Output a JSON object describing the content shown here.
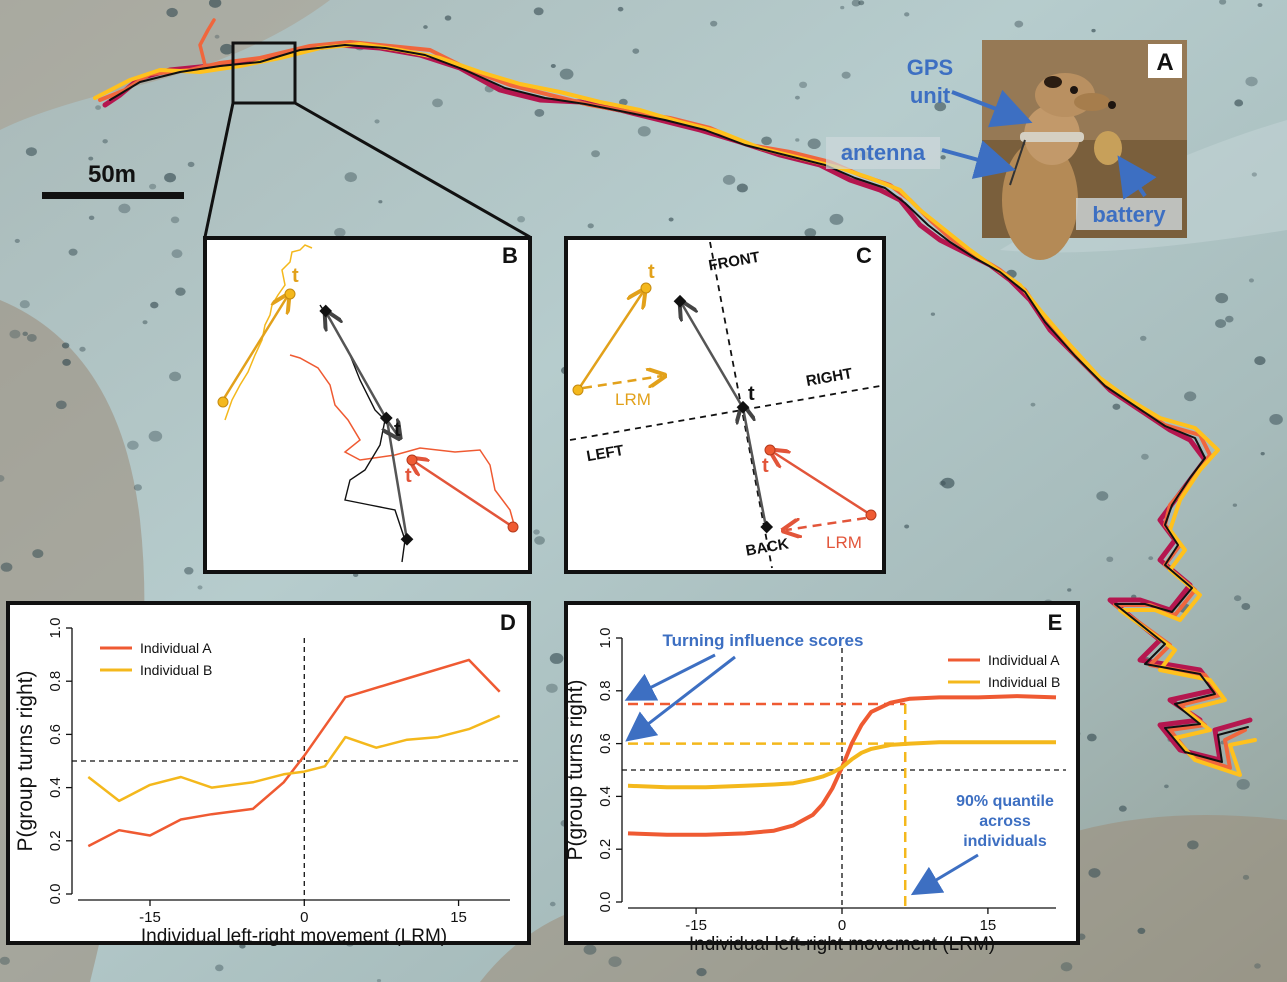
{
  "scale_bar": {
    "label": "50m"
  },
  "panels": {
    "a": {
      "label": "A",
      "annotations": [
        "GPS",
        "unit",
        "antenna",
        "battery"
      ]
    },
    "b": {
      "label": "B",
      "t_labels": [
        "t",
        "t",
        "t"
      ]
    },
    "c": {
      "label": "C",
      "directions": [
        "FRONT",
        "RIGHT",
        "LEFT",
        "BACK"
      ],
      "lrm": [
        "LRM",
        "LRM"
      ],
      "t_labels": [
        "t",
        "t",
        "t"
      ]
    },
    "d": {
      "label": "D"
    },
    "e": {
      "label": "E",
      "annotations": [
        "Turning influence scores",
        "90% quantile",
        "across",
        "individuals"
      ]
    }
  },
  "colors": {
    "individual_a": "#ef5a32",
    "individual_b": "#f4b81c",
    "group": "#111111",
    "track_dark": "#b5164f",
    "annotation_blue": "#3d6fc2"
  },
  "icons": [
    "meerkat-photo",
    "satellite-map"
  ],
  "chart_data": [
    {
      "type": "line",
      "panel": "D",
      "title": "",
      "xlabel": "Individual left-right movement (LRM)",
      "ylabel": "P(group turns right)",
      "xlim": [
        -22,
        20
      ],
      "ylim": [
        0,
        1
      ],
      "xticks": [
        -15,
        0,
        15
      ],
      "yticks": [
        "0.0",
        "0.2",
        "0.4",
        "0.6",
        "0.8",
        "1.0"
      ],
      "legend": "top-left",
      "hline": 0.5,
      "vline": 0,
      "series": [
        {
          "name": "Individual A",
          "color": "#ef5a32",
          "x": [
            -21,
            -18,
            -15,
            -12,
            -9,
            -5,
            -2,
            0,
            4,
            10,
            16,
            19
          ],
          "y": [
            0.18,
            0.24,
            0.22,
            0.28,
            0.3,
            0.32,
            0.42,
            0.52,
            0.74,
            0.81,
            0.88,
            0.76
          ]
        },
        {
          "name": "Individual B",
          "color": "#f4b81c",
          "x": [
            -21,
            -18,
            -15,
            -12,
            -9,
            -5,
            -2,
            0,
            2,
            4,
            7,
            10,
            13,
            16,
            19
          ],
          "y": [
            0.44,
            0.35,
            0.41,
            0.44,
            0.4,
            0.42,
            0.45,
            0.46,
            0.48,
            0.59,
            0.55,
            0.58,
            0.59,
            0.62,
            0.67
          ]
        }
      ]
    },
    {
      "type": "line",
      "panel": "E",
      "title": "",
      "xlabel": "Individual left-right movement (LRM)",
      "ylabel": "P(group turns right)",
      "xlim": [
        -22,
        22
      ],
      "ylim": [
        0,
        1
      ],
      "xticks": [
        -15,
        0,
        15
      ],
      "yticks": [
        "0.0",
        "0.2",
        "0.4",
        "0.6",
        "0.8",
        "1.0"
      ],
      "legend": "top-right",
      "hline": 0.5,
      "vline": 0,
      "quantile_x": 6.5,
      "influence_a": 0.75,
      "influence_b": 0.6,
      "series": [
        {
          "name": "Individual A",
          "color": "#ef5a32",
          "x": [
            -22,
            -18,
            -14,
            -10,
            -7,
            -5,
            -3,
            -2,
            -1,
            0,
            1,
            2,
            3,
            5,
            7,
            10,
            14,
            18,
            22
          ],
          "y": [
            0.26,
            0.255,
            0.255,
            0.26,
            0.27,
            0.29,
            0.33,
            0.37,
            0.43,
            0.51,
            0.6,
            0.67,
            0.72,
            0.755,
            0.77,
            0.775,
            0.775,
            0.78,
            0.775
          ]
        },
        {
          "name": "Individual B",
          "color": "#f4b81c",
          "x": [
            -22,
            -18,
            -14,
            -10,
            -7,
            -5,
            -3,
            -2,
            -1,
            0,
            1,
            2,
            3,
            5,
            7,
            10,
            14,
            18,
            22
          ],
          "y": [
            0.44,
            0.435,
            0.435,
            0.44,
            0.445,
            0.45,
            0.465,
            0.475,
            0.49,
            0.51,
            0.54,
            0.565,
            0.58,
            0.595,
            0.6,
            0.605,
            0.605,
            0.605,
            0.605
          ]
        }
      ]
    }
  ]
}
